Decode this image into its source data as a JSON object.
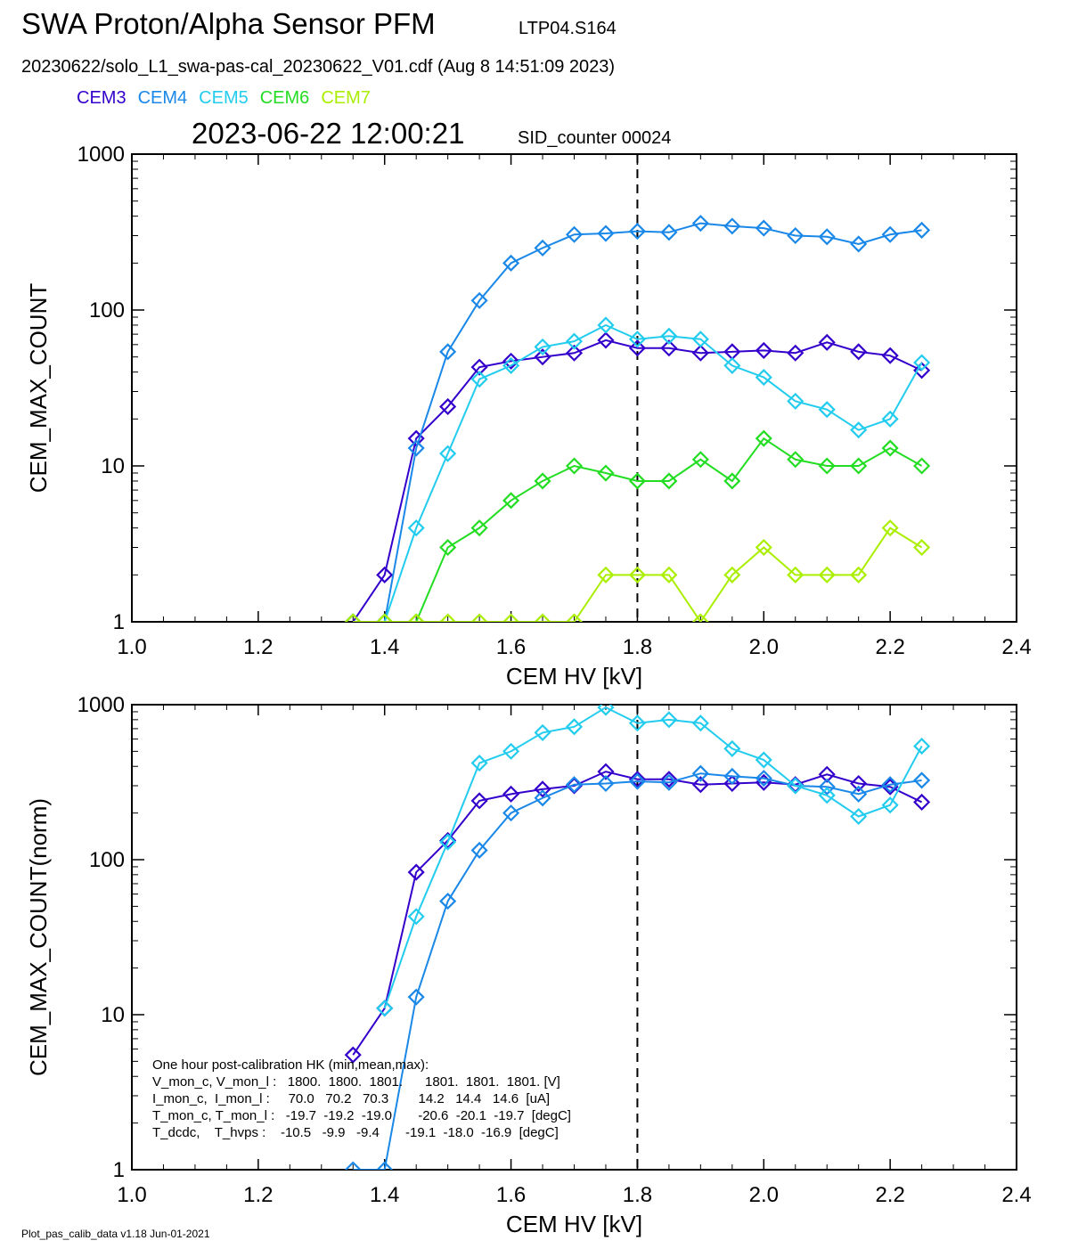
{
  "header": {
    "title": "SWA Proton/Alpha Sensor PFM",
    "run_id": "LTP04.S164",
    "file_line": "20230622/solo_L1_swa-pas-cal_20230622_V01.cdf  (Aug  8 14:51:09 2023)",
    "timestamp": "2023-06-22 12:00:21",
    "sid": "SID_counter 00024"
  },
  "legend": [
    {
      "name": "CEM3",
      "color": "#3300cc"
    },
    {
      "name": "CEM4",
      "color": "#1a88e8"
    },
    {
      "name": "CEM5",
      "color": "#22ccee"
    },
    {
      "name": "CEM6",
      "color": "#22dd22"
    },
    {
      "name": "CEM7",
      "color": "#aaee00"
    }
  ],
  "footer": "Plot_pas_calib_data v1.18 Jun-01-2021",
  "hk_box": {
    "lines": [
      "One hour post-calibration HK (min,mean,max):",
      "V_mon_c, V_mon_l :   1800.  1800.  1801.      1801.  1801.  1801. [V]",
      "I_mon_c,  I_mon_l :     70.0   70.2   70.3        14.2   14.4   14.6  [uA]",
      "T_mon_c, T_mon_l :   -19.7  -19.2  -19.0       -20.6  -20.1  -19.7  [degC]",
      "T_dcdc,    T_hvps :    -10.5   -9.9   -9.4       -19.1  -18.0  -16.9  [degC]"
    ]
  },
  "chart_data": [
    {
      "type": "line",
      "xlabel": "CEM HV [kV]",
      "ylabel": "CEM_MAX_COUNT",
      "yscale": "log",
      "xlim": [
        1.0,
        2.4
      ],
      "ylim": [
        1,
        1000
      ],
      "xticks": [
        "1.0",
        "1.2",
        "1.4",
        "1.6",
        "1.8",
        "2.0",
        "2.2",
        "2.4"
      ],
      "yticks": [
        "1",
        "10",
        "100",
        "1000"
      ],
      "vline": 1.8,
      "series": [
        {
          "name": "CEM3",
          "color": "#3300cc",
          "points": [
            [
              1.35,
              1
            ],
            [
              1.4,
              2
            ],
            [
              1.45,
              15
            ],
            [
              1.5,
              24
            ],
            [
              1.55,
              43
            ],
            [
              1.6,
              47
            ],
            [
              1.65,
              50
            ],
            [
              1.7,
              53
            ],
            [
              1.75,
              64
            ],
            [
              1.8,
              57
            ],
            [
              1.85,
              57
            ],
            [
              1.9,
              53
            ],
            [
              1.95,
              54
            ],
            [
              2.0,
              55
            ],
            [
              2.05,
              53
            ],
            [
              2.1,
              62
            ],
            [
              2.15,
              54
            ],
            [
              2.2,
              51
            ],
            [
              2.25,
              41
            ]
          ]
        },
        {
          "name": "CEM4",
          "color": "#1a88e8",
          "points": [
            [
              1.35,
              1
            ],
            [
              1.4,
              1
            ],
            [
              1.45,
              13
            ],
            [
              1.5,
              54
            ],
            [
              1.55,
              115
            ],
            [
              1.6,
              200
            ],
            [
              1.65,
              250
            ],
            [
              1.7,
              305
            ],
            [
              1.75,
              310
            ],
            [
              1.8,
              320
            ],
            [
              1.85,
              315
            ],
            [
              1.9,
              360
            ],
            [
              1.95,
              345
            ],
            [
              2.0,
              335
            ],
            [
              2.05,
              300
            ],
            [
              2.1,
              295
            ],
            [
              2.15,
              265
            ],
            [
              2.2,
              305
            ],
            [
              2.25,
              325
            ]
          ]
        },
        {
          "name": "CEM5",
          "color": "#22ccee",
          "points": [
            [
              1.35,
              1
            ],
            [
              1.4,
              1
            ],
            [
              1.45,
              4
            ],
            [
              1.5,
              12
            ],
            [
              1.55,
              36
            ],
            [
              1.6,
              44
            ],
            [
              1.65,
              58
            ],
            [
              1.7,
              63
            ],
            [
              1.75,
              80
            ],
            [
              1.8,
              65
            ],
            [
              1.85,
              68
            ],
            [
              1.9,
              65
            ],
            [
              1.95,
              44
            ],
            [
              2.0,
              37
            ],
            [
              2.05,
              26
            ],
            [
              2.1,
              23
            ],
            [
              2.15,
              17
            ],
            [
              2.2,
              20
            ],
            [
              2.25,
              46
            ]
          ]
        },
        {
          "name": "CEM6",
          "color": "#22dd22",
          "points": [
            [
              1.35,
              1
            ],
            [
              1.4,
              1
            ],
            [
              1.45,
              1
            ],
            [
              1.5,
              3
            ],
            [
              1.55,
              4
            ],
            [
              1.6,
              6
            ],
            [
              1.65,
              8
            ],
            [
              1.7,
              10
            ],
            [
              1.75,
              9
            ],
            [
              1.8,
              8
            ],
            [
              1.85,
              8
            ],
            [
              1.9,
              11
            ],
            [
              1.95,
              8
            ],
            [
              2.0,
              15
            ],
            [
              2.05,
              11
            ],
            [
              2.1,
              10
            ],
            [
              2.15,
              10
            ],
            [
              2.2,
              13
            ],
            [
              2.25,
              10
            ]
          ]
        },
        {
          "name": "CEM7",
          "color": "#aaee00",
          "points": [
            [
              1.35,
              1
            ],
            [
              1.4,
              1
            ],
            [
              1.45,
              1
            ],
            [
              1.5,
              1
            ],
            [
              1.55,
              1
            ],
            [
              1.6,
              1
            ],
            [
              1.65,
              1
            ],
            [
              1.7,
              1
            ],
            [
              1.75,
              2
            ],
            [
              1.8,
              2
            ],
            [
              1.85,
              2
            ],
            [
              1.9,
              1
            ],
            [
              1.95,
              2
            ],
            [
              2.0,
              3
            ],
            [
              2.05,
              2
            ],
            [
              2.1,
              2
            ],
            [
              2.15,
              2
            ],
            [
              2.2,
              4
            ],
            [
              2.25,
              3
            ]
          ]
        }
      ]
    },
    {
      "type": "line",
      "xlabel": "CEM HV [kV]",
      "ylabel": "CEM_MAX_COUNT(norm)",
      "yscale": "log",
      "xlim": [
        1.0,
        2.4
      ],
      "ylim": [
        1,
        1000
      ],
      "xticks": [
        "1.0",
        "1.2",
        "1.4",
        "1.6",
        "1.8",
        "2.0",
        "2.2",
        "2.4"
      ],
      "yticks": [
        "1",
        "10",
        "100",
        "1000"
      ],
      "vline": 1.8,
      "series": [
        {
          "name": "CEM3",
          "color": "#3300cc",
          "points": [
            [
              1.35,
              5.5
            ],
            [
              1.4,
              11
            ],
            [
              1.45,
              83
            ],
            [
              1.5,
              133
            ],
            [
              1.55,
              240
            ],
            [
              1.6,
              265
            ],
            [
              1.65,
              285
            ],
            [
              1.7,
              300
            ],
            [
              1.75,
              370
            ],
            [
              1.8,
              330
            ],
            [
              1.85,
              330
            ],
            [
              1.9,
              305
            ],
            [
              1.95,
              310
            ],
            [
              2.0,
              315
            ],
            [
              2.05,
              305
            ],
            [
              2.1,
              355
            ],
            [
              2.15,
              310
            ],
            [
              2.2,
              295
            ],
            [
              2.25,
              235
            ]
          ]
        },
        {
          "name": "CEM4",
          "color": "#1a88e8",
          "points": [
            [
              1.35,
              1
            ],
            [
              1.4,
              1
            ],
            [
              1.45,
              13
            ],
            [
              1.5,
              54
            ],
            [
              1.55,
              115
            ],
            [
              1.6,
              200
            ],
            [
              1.65,
              250
            ],
            [
              1.7,
              305
            ],
            [
              1.75,
              310
            ],
            [
              1.8,
              320
            ],
            [
              1.85,
              315
            ],
            [
              1.9,
              360
            ],
            [
              1.95,
              345
            ],
            [
              2.0,
              335
            ],
            [
              2.05,
              300
            ],
            [
              2.1,
              295
            ],
            [
              2.15,
              265
            ],
            [
              2.2,
              305
            ],
            [
              2.25,
              325
            ]
          ]
        },
        {
          "name": "CEM5",
          "color": "#22ccee",
          "points": [
            [
              1.4,
              11
            ],
            [
              1.45,
              43
            ],
            [
              1.5,
              130
            ],
            [
              1.55,
              420
            ],
            [
              1.6,
              500
            ],
            [
              1.65,
              660
            ],
            [
              1.7,
              720
            ],
            [
              1.75,
              960
            ],
            [
              1.8,
              760
            ],
            [
              1.85,
              800
            ],
            [
              1.9,
              760
            ],
            [
              1.95,
              520
            ],
            [
              2.0,
              440
            ],
            [
              2.05,
              300
            ],
            [
              2.1,
              260
            ],
            [
              2.15,
              190
            ],
            [
              2.2,
              225
            ],
            [
              2.25,
              540
            ]
          ]
        }
      ]
    }
  ]
}
